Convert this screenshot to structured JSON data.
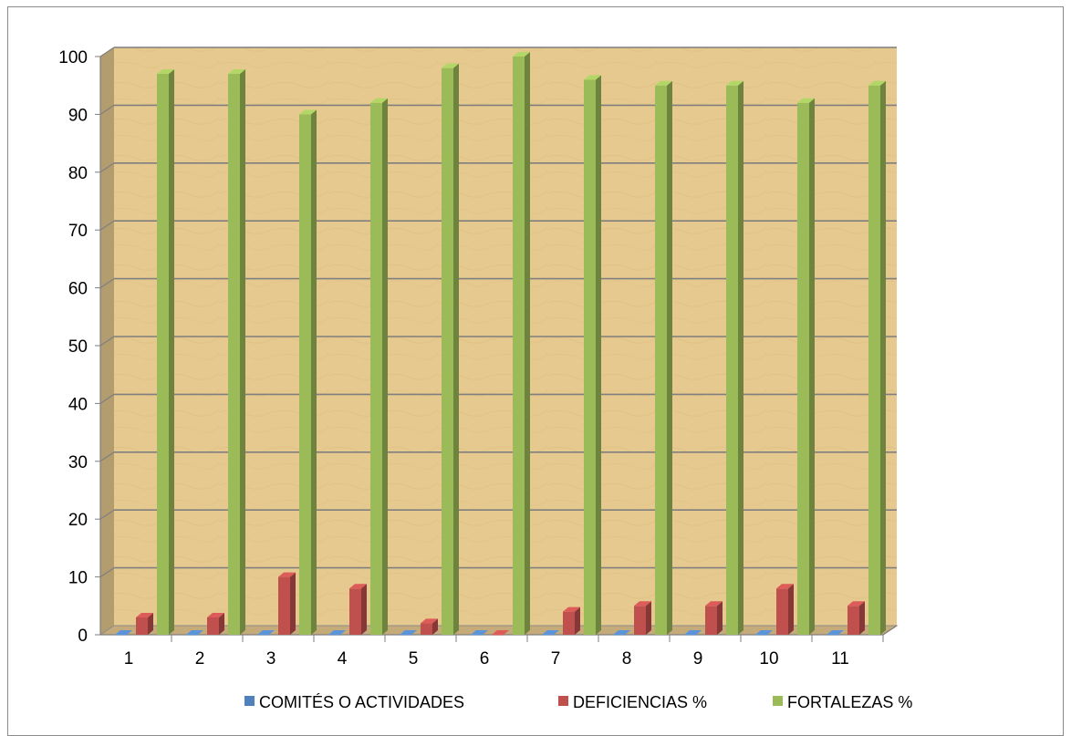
{
  "chart_data": {
    "type": "bar",
    "style": "3d-clustered-column",
    "categories": [
      "1",
      "2",
      "3",
      "4",
      "5",
      "6",
      "7",
      "8",
      "9",
      "10",
      "11"
    ],
    "series": [
      {
        "name": "COMITÉS O ACTIVIDADES",
        "color": "#4F81BD",
        "values": [
          0,
          0,
          0,
          0,
          0,
          0,
          0,
          0,
          0,
          0,
          0
        ]
      },
      {
        "name": "DEFICIENCIAS %",
        "color": "#C0504D",
        "values": [
          3,
          3,
          10,
          8,
          2,
          0,
          4,
          5,
          5,
          8,
          5
        ]
      },
      {
        "name": "FORTALEZAS %",
        "color": "#9BBB59",
        "values": [
          97,
          97,
          90,
          92,
          98,
          100,
          96,
          95,
          95,
          92,
          95
        ]
      }
    ],
    "y_ticks": [
      "0",
      "10",
      "20",
      "30",
      "40",
      "50",
      "60",
      "70",
      "80",
      "90",
      "100"
    ],
    "ylim": [
      0,
      100
    ],
    "grid": true,
    "legend": "bottom",
    "wall_color": "#E6C98E"
  }
}
